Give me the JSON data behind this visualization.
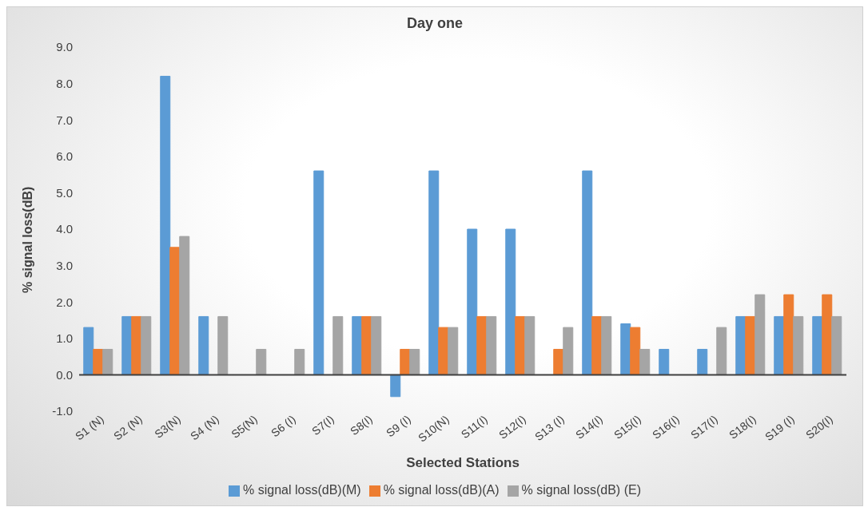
{
  "chart_data": {
    "type": "bar",
    "title": "Day one",
    "xlabel": "Selected Stations",
    "ylabel": "% signal loss(dB)",
    "categories": [
      "S1 (N)",
      "S2 (N)",
      "S3(N)",
      "S4 (N)",
      "S5(N)",
      "S6 (I)",
      "S7(I)",
      "S8(I)",
      "S9 (I)",
      "S10(N)",
      "S11(I)",
      "S12(I)",
      "S13 (I)",
      "S14(I)",
      "S15(I)",
      "S16(I)",
      "S17(I)",
      "S18(I)",
      "S19 (I)",
      "S20(I)"
    ],
    "series": [
      {
        "name": "% signal loss(dB)(M)",
        "color": "#5b9bd5",
        "values": [
          1.3,
          1.6,
          8.2,
          1.6,
          0,
          0,
          5.6,
          1.6,
          -0.6,
          5.6,
          4.0,
          4.0,
          0,
          5.6,
          1.4,
          0.7,
          0.7,
          1.6,
          1.6,
          1.6
        ]
      },
      {
        "name": "% signal loss(dB)(A)",
        "color": "#ed7d31",
        "values": [
          0.7,
          1.6,
          3.5,
          0,
          0,
          0,
          0,
          1.6,
          0.7,
          1.3,
          1.6,
          1.6,
          0.7,
          1.6,
          1.3,
          0,
          0,
          1.6,
          2.2,
          2.2
        ]
      },
      {
        "name": "% signal loss(dB) (E)",
        "color": "#a5a5a5",
        "values": [
          0.7,
          1.6,
          3.8,
          1.6,
          0.7,
          0.7,
          1.6,
          1.6,
          0.7,
          1.3,
          1.6,
          1.6,
          1.3,
          1.6,
          0.7,
          0,
          1.3,
          2.2,
          1.6,
          1.6
        ]
      }
    ],
    "ylim": [
      -1,
      9
    ],
    "yticks": [
      {
        "value": -1,
        "label": "-1.0"
      },
      {
        "value": 0,
        "label": "0.0"
      },
      {
        "value": 1,
        "label": "1.0"
      },
      {
        "value": 2,
        "label": "2.0"
      },
      {
        "value": 3,
        "label": "3.0"
      },
      {
        "value": 4,
        "label": "4.0"
      },
      {
        "value": 5,
        "label": "5.0"
      },
      {
        "value": 6,
        "label": "6.0"
      },
      {
        "value": 7,
        "label": "7.0"
      },
      {
        "value": 8,
        "label": "8.0"
      },
      {
        "value": 9,
        "label": "9.0"
      }
    ],
    "legend": "bottom"
  }
}
